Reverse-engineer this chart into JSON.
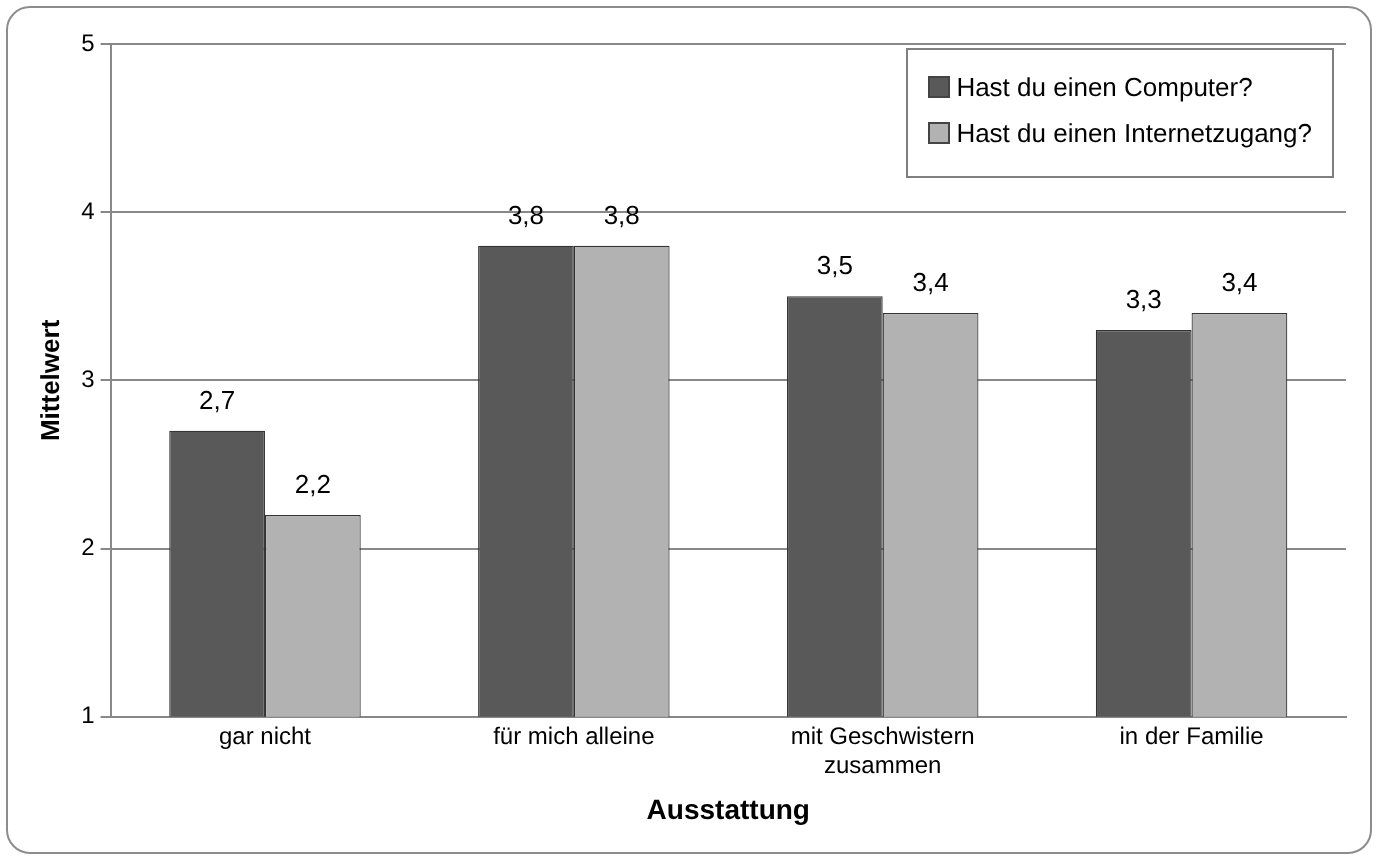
{
  "chart_data": {
    "type": "bar",
    "xlabel": "Ausstattung",
    "ylabel": "Mittelwert",
    "categories": [
      "gar nicht",
      "für mich alleine",
      "mit Geschwistern zusammen",
      "in der Familie"
    ],
    "series": [
      {
        "name": "Hast du einen Computer?",
        "color": "#595959",
        "values": [
          2.7,
          3.8,
          3.5,
          3.3
        ],
        "value_labels": [
          "2,7",
          "3,8",
          "3,5",
          "3,3"
        ]
      },
      {
        "name": "Hast du einen Internetzugang?",
        "color": "#b2b2b2",
        "values": [
          2.2,
          3.8,
          3.4,
          3.4
        ],
        "value_labels": [
          "2,2",
          "3,8",
          "3,4",
          "3,4"
        ]
      }
    ],
    "ylim": [
      1,
      5
    ],
    "yticks": [
      1,
      2,
      3,
      4,
      5
    ],
    "grid": "y",
    "legend": "top right"
  }
}
